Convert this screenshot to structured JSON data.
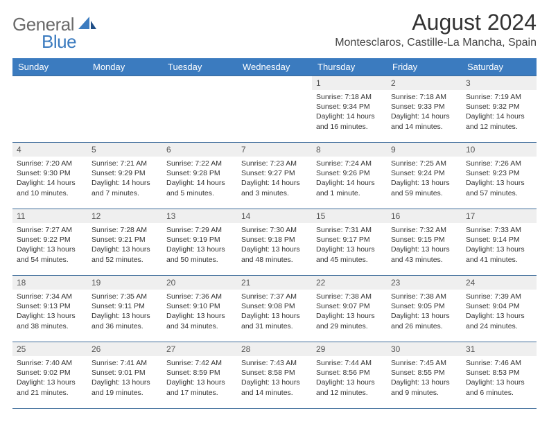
{
  "logo": {
    "general": "General",
    "blue": "Blue"
  },
  "title": "August 2024",
  "location": "Montesclaros, Castille-La Mancha, Spain",
  "colors": {
    "accent": "#3b7bbf",
    "rule": "#3b6a99",
    "daybg": "#efefef"
  },
  "weekdays": [
    "Sunday",
    "Monday",
    "Tuesday",
    "Wednesday",
    "Thursday",
    "Friday",
    "Saturday"
  ],
  "weeks": [
    [
      {
        "blank": true
      },
      {
        "blank": true
      },
      {
        "blank": true
      },
      {
        "blank": true
      },
      {
        "n": "1",
        "rise": "7:18 AM",
        "set": "9:34 PM",
        "day": "14 hours and 16 minutes."
      },
      {
        "n": "2",
        "rise": "7:18 AM",
        "set": "9:33 PM",
        "day": "14 hours and 14 minutes."
      },
      {
        "n": "3",
        "rise": "7:19 AM",
        "set": "9:32 PM",
        "day": "14 hours and 12 minutes."
      }
    ],
    [
      {
        "n": "4",
        "rise": "7:20 AM",
        "set": "9:30 PM",
        "day": "14 hours and 10 minutes."
      },
      {
        "n": "5",
        "rise": "7:21 AM",
        "set": "9:29 PM",
        "day": "14 hours and 7 minutes."
      },
      {
        "n": "6",
        "rise": "7:22 AM",
        "set": "9:28 PM",
        "day": "14 hours and 5 minutes."
      },
      {
        "n": "7",
        "rise": "7:23 AM",
        "set": "9:27 PM",
        "day": "14 hours and 3 minutes."
      },
      {
        "n": "8",
        "rise": "7:24 AM",
        "set": "9:26 PM",
        "day": "14 hours and 1 minute."
      },
      {
        "n": "9",
        "rise": "7:25 AM",
        "set": "9:24 PM",
        "day": "13 hours and 59 minutes."
      },
      {
        "n": "10",
        "rise": "7:26 AM",
        "set": "9:23 PM",
        "day": "13 hours and 57 minutes."
      }
    ],
    [
      {
        "n": "11",
        "rise": "7:27 AM",
        "set": "9:22 PM",
        "day": "13 hours and 54 minutes."
      },
      {
        "n": "12",
        "rise": "7:28 AM",
        "set": "9:21 PM",
        "day": "13 hours and 52 minutes."
      },
      {
        "n": "13",
        "rise": "7:29 AM",
        "set": "9:19 PM",
        "day": "13 hours and 50 minutes."
      },
      {
        "n": "14",
        "rise": "7:30 AM",
        "set": "9:18 PM",
        "day": "13 hours and 48 minutes."
      },
      {
        "n": "15",
        "rise": "7:31 AM",
        "set": "9:17 PM",
        "day": "13 hours and 45 minutes."
      },
      {
        "n": "16",
        "rise": "7:32 AM",
        "set": "9:15 PM",
        "day": "13 hours and 43 minutes."
      },
      {
        "n": "17",
        "rise": "7:33 AM",
        "set": "9:14 PM",
        "day": "13 hours and 41 minutes."
      }
    ],
    [
      {
        "n": "18",
        "rise": "7:34 AM",
        "set": "9:13 PM",
        "day": "13 hours and 38 minutes."
      },
      {
        "n": "19",
        "rise": "7:35 AM",
        "set": "9:11 PM",
        "day": "13 hours and 36 minutes."
      },
      {
        "n": "20",
        "rise": "7:36 AM",
        "set": "9:10 PM",
        "day": "13 hours and 34 minutes."
      },
      {
        "n": "21",
        "rise": "7:37 AM",
        "set": "9:08 PM",
        "day": "13 hours and 31 minutes."
      },
      {
        "n": "22",
        "rise": "7:38 AM",
        "set": "9:07 PM",
        "day": "13 hours and 29 minutes."
      },
      {
        "n": "23",
        "rise": "7:38 AM",
        "set": "9:05 PM",
        "day": "13 hours and 26 minutes."
      },
      {
        "n": "24",
        "rise": "7:39 AM",
        "set": "9:04 PM",
        "day": "13 hours and 24 minutes."
      }
    ],
    [
      {
        "n": "25",
        "rise": "7:40 AM",
        "set": "9:02 PM",
        "day": "13 hours and 21 minutes."
      },
      {
        "n": "26",
        "rise": "7:41 AM",
        "set": "9:01 PM",
        "day": "13 hours and 19 minutes."
      },
      {
        "n": "27",
        "rise": "7:42 AM",
        "set": "8:59 PM",
        "day": "13 hours and 17 minutes."
      },
      {
        "n": "28",
        "rise": "7:43 AM",
        "set": "8:58 PM",
        "day": "13 hours and 14 minutes."
      },
      {
        "n": "29",
        "rise": "7:44 AM",
        "set": "8:56 PM",
        "day": "13 hours and 12 minutes."
      },
      {
        "n": "30",
        "rise": "7:45 AM",
        "set": "8:55 PM",
        "day": "13 hours and 9 minutes."
      },
      {
        "n": "31",
        "rise": "7:46 AM",
        "set": "8:53 PM",
        "day": "13 hours and 6 minutes."
      }
    ]
  ]
}
